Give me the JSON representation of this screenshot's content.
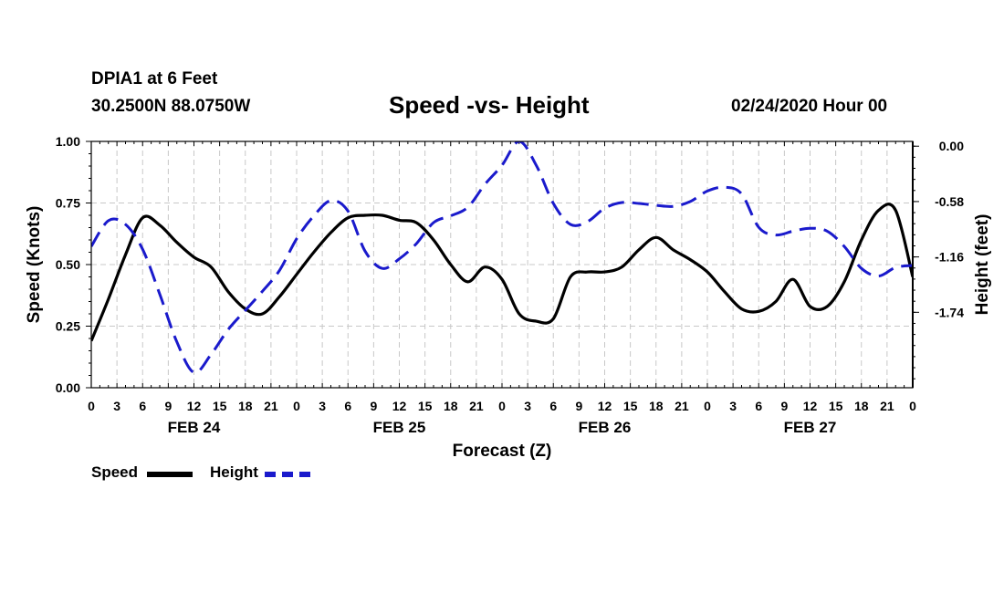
{
  "header": {
    "station": "DPIA1 at 6 Feet",
    "coords": "30.2500N 88.0750W",
    "datetime": "02/24/2020 Hour 00"
  },
  "legend": {
    "speed_label": "Speed",
    "height_label": "Height"
  },
  "colors": {
    "speed": "#000000",
    "height": "#1a1acc",
    "grid": "#c8c8c8"
  },
  "chart_data": {
    "type": "line",
    "title": "Speed -vs- Height",
    "xlabel": "Forecast (Z)",
    "ylabel": "Speed (Knots)",
    "ylabel_right": "Height (feet)",
    "x_range_hours": [
      0,
      96
    ],
    "x_tick_step_hours": 3,
    "x_tick_labels": [
      "0",
      "3",
      "6",
      "9",
      "12",
      "15",
      "18",
      "21",
      "0",
      "3",
      "6",
      "9",
      "12",
      "15",
      "18",
      "21",
      "0",
      "3",
      "6",
      "9",
      "12",
      "15",
      "18",
      "21",
      "0",
      "3",
      "6",
      "9",
      "12",
      "15",
      "18",
      "21",
      "0"
    ],
    "day_labels": [
      {
        "label": "FEB 24",
        "hour": 12
      },
      {
        "label": "FEB 25",
        "hour": 36
      },
      {
        "label": "FEB 26",
        "hour": 60
      },
      {
        "label": "FEB 27",
        "hour": 84
      }
    ],
    "ylim": [
      0,
      1
    ],
    "y_ticks": [
      0.0,
      0.25,
      0.5,
      0.75,
      1.0
    ],
    "y_tick_labels": [
      "0.00",
      "0.25",
      "0.50",
      "0.75",
      "1.00"
    ],
    "ylim_right": [
      -2.53,
      0.05
    ],
    "y_ticks_right": [
      0.0,
      -0.58,
      -1.16,
      -1.74
    ],
    "y_tick_labels_right": [
      "0.00",
      "-0.58",
      "-1.16",
      "-1.74"
    ],
    "grid": true,
    "legend_position": "bottom-left",
    "series": [
      {
        "name": "Speed",
        "axis": "left",
        "style": "solid",
        "x": [
          0,
          2,
          4,
          6,
          8,
          10,
          12,
          14,
          16,
          18,
          20,
          22,
          24,
          26,
          28,
          30,
          32,
          34,
          36,
          38,
          40,
          42,
          44,
          46,
          48,
          50,
          52,
          54,
          56,
          58,
          60,
          62,
          64,
          66,
          68,
          70,
          72,
          74,
          76,
          78,
          80,
          82,
          84,
          86,
          88,
          90,
          92,
          94,
          96
        ],
        "values": [
          0.19,
          0.36,
          0.54,
          0.69,
          0.66,
          0.59,
          0.53,
          0.49,
          0.39,
          0.32,
          0.3,
          0.37,
          0.46,
          0.55,
          0.63,
          0.69,
          0.7,
          0.7,
          0.68,
          0.67,
          0.6,
          0.5,
          0.43,
          0.49,
          0.44,
          0.3,
          0.27,
          0.28,
          0.45,
          0.47,
          0.47,
          0.49,
          0.56,
          0.61,
          0.56,
          0.52,
          0.47,
          0.39,
          0.32,
          0.31,
          0.35,
          0.44,
          0.33,
          0.33,
          0.43,
          0.6,
          0.72,
          0.72,
          0.45
        ]
      },
      {
        "name": "Height",
        "axis": "right",
        "style": "dashed",
        "x": [
          0,
          2,
          4,
          6,
          8,
          10,
          12,
          14,
          16,
          18,
          20,
          22,
          24,
          26,
          28,
          30,
          32,
          34,
          36,
          38,
          40,
          42,
          44,
          46,
          48,
          50,
          52,
          54,
          56,
          58,
          60,
          62,
          64,
          66,
          68,
          70,
          72,
          74,
          76,
          78,
          80,
          82,
          84,
          86,
          88,
          90,
          92,
          94,
          96
        ],
        "values": [
          -1.05,
          -0.78,
          -0.82,
          -1.08,
          -1.55,
          -2.05,
          -2.37,
          -2.18,
          -1.92,
          -1.72,
          -1.52,
          -1.3,
          -0.97,
          -0.73,
          -0.57,
          -0.68,
          -1.1,
          -1.28,
          -1.18,
          -1.02,
          -0.8,
          -0.73,
          -0.64,
          -0.4,
          -0.2,
          0.05,
          -0.2,
          -0.6,
          -0.82,
          -0.79,
          -0.65,
          -0.59,
          -0.6,
          -0.62,
          -0.63,
          -0.58,
          -0.47,
          -0.43,
          -0.5,
          -0.85,
          -0.93,
          -0.89,
          -0.86,
          -0.89,
          -1.05,
          -1.28,
          -1.36,
          -1.27,
          -1.25
        ]
      }
    ]
  }
}
